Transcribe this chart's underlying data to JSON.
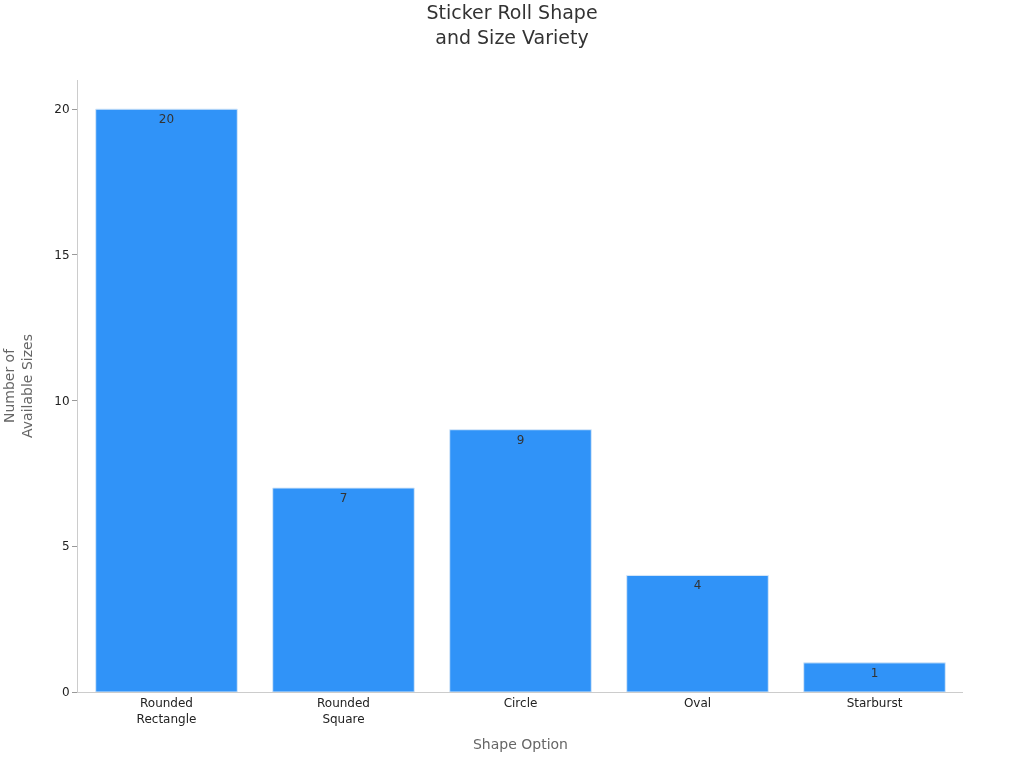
{
  "chart_data": {
    "type": "bar",
    "title": "Sticker Roll Shape\nand Size Variety",
    "xlabel": "Shape Option",
    "ylabel": "Number of\nAvailable Sizes",
    "categories": [
      "Rounded\nRectangle",
      "Rounded\nSquare",
      "Circle",
      "Oval",
      "Starburst"
    ],
    "values": [
      20,
      7,
      9,
      4,
      1
    ],
    "color": "#3093f8",
    "ylim": [
      0,
      21
    ],
    "yticks": [
      0,
      5,
      10,
      15,
      20
    ],
    "grid": false,
    "data_labels": true,
    "legend": false
  }
}
